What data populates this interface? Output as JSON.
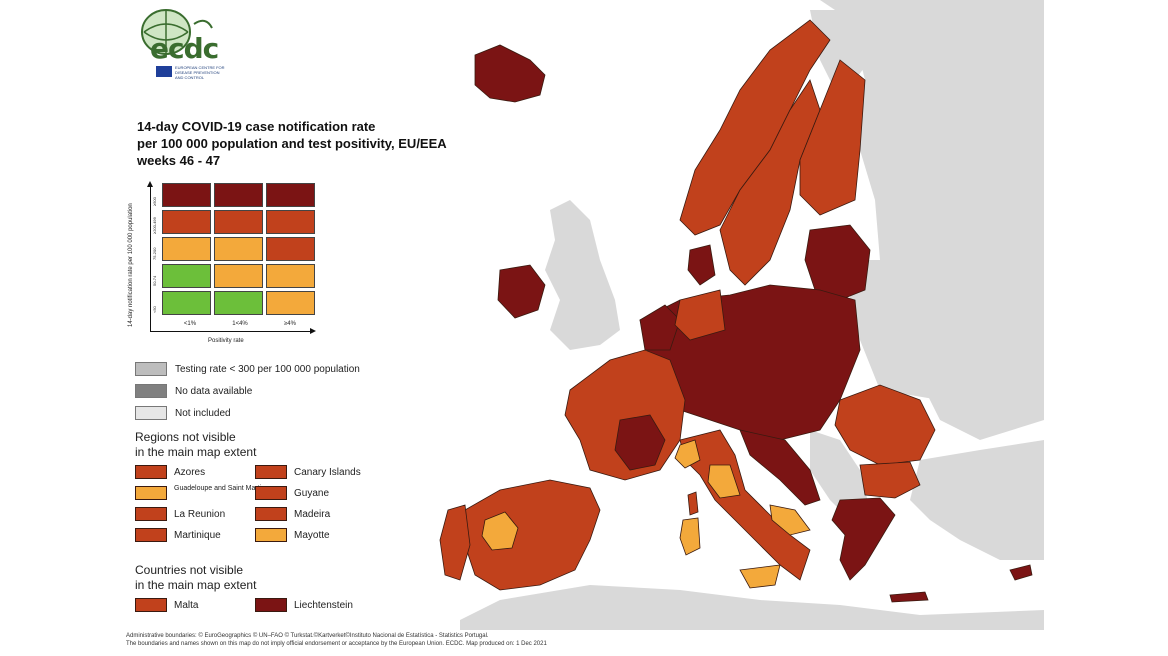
{
  "colors": {
    "sea": "#ffffff",
    "non_eu": "#d9d9d9",
    "darkred": "#7b1414",
    "red": "#c1411c",
    "orange": "#f3a93b",
    "green": "#6cbf3a",
    "grey_testing": "#bdbdbd",
    "grey_nodata": "#808080",
    "not_included": "#e6e6e6",
    "border": "#3a1a10"
  },
  "logo": {
    "name": "ecdc",
    "subtitle": "European Centre for Disease Prevention and Control",
    "icon": "ecdc-globe-icon"
  },
  "title": {
    "line1": "14-day COVID-19 case notification rate",
    "line2": "per 100 000 population and test positivity, EU/EEA",
    "line3": "weeks 46 - 47"
  },
  "matrix": {
    "y_axis_label": "14-day notification rate per 100 000 population",
    "x_axis_label": "Positivity rate",
    "y_ticks": [
      "≥500",
      "≥200-499",
      "75-200",
      "50-74",
      "<50"
    ],
    "x_ticks": [
      "<1%",
      "1<4%",
      "≥4%"
    ],
    "rows": [
      [
        "darkred",
        "darkred",
        "darkred"
      ],
      [
        "red",
        "red",
        "red"
      ],
      [
        "orange",
        "orange",
        "red"
      ],
      [
        "green",
        "orange",
        "orange"
      ],
      [
        "green",
        "green",
        "orange"
      ]
    ]
  },
  "legend": {
    "testing": "Testing rate < 300 per 100 000 population",
    "no_data": "No data available",
    "not_included": "Not included"
  },
  "regions_heading": {
    "line1": "Regions not visible",
    "line2": "in the main map extent"
  },
  "regions": [
    {
      "label": "Azores",
      "color": "red"
    },
    {
      "label": "Canary Islands",
      "color": "red"
    },
    {
      "label": "Guadeloupe and Saint Martin",
      "color": "orange"
    },
    {
      "label": "Guyane",
      "color": "red"
    },
    {
      "label": "La Reunion",
      "color": "red"
    },
    {
      "label": "Madeira",
      "color": "red"
    },
    {
      "label": "Martinique",
      "color": "red"
    },
    {
      "label": "Mayotte",
      "color": "orange"
    }
  ],
  "countries_heading": {
    "line1": "Countries not visible",
    "line2": "in the main map extent"
  },
  "countries": [
    {
      "label": "Malta",
      "color": "red"
    },
    {
      "label": "Liechtenstein",
      "color": "darkred"
    }
  ],
  "footer": {
    "line1": "Administrative boundaries: © EuroGeographics © UN–FAO © Turkstat.©Kartverket©Instituto Nacional de Estatística - Statistics Portugal.",
    "line2": "The boundaries and names shown on this map do not imply official endorsement or acceptance by the European Union. ECDC. Map produced on: 1 Dec 2021"
  }
}
